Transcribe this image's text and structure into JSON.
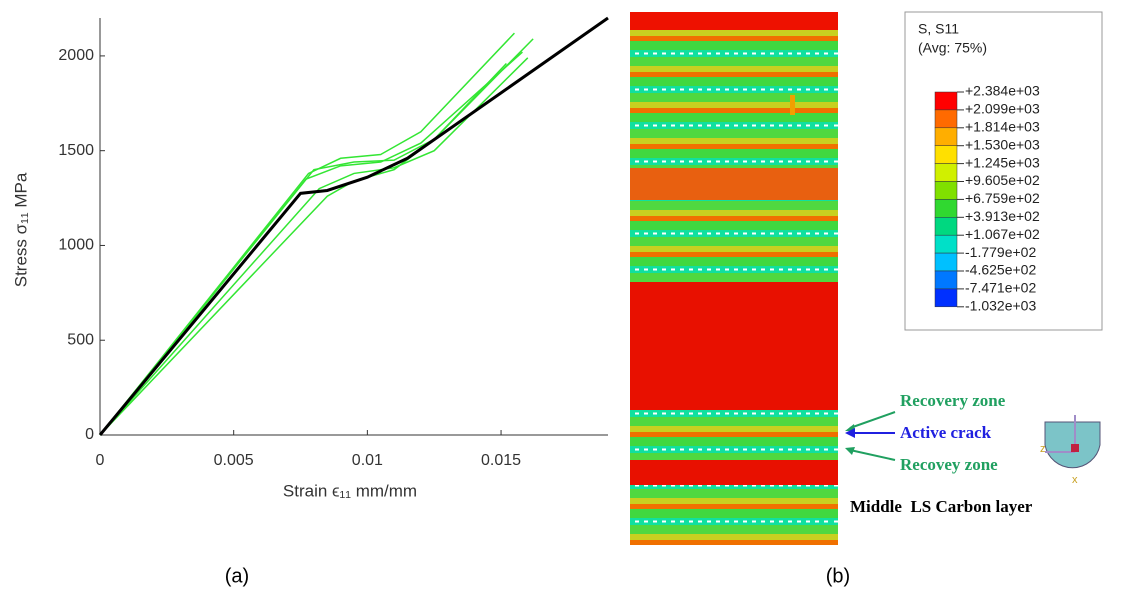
{
  "chart_data": {
    "type": "line",
    "ylabel": "Stress σ₁₁ MPa",
    "xlabel": "Strain ϵ₁₁ mm/mm",
    "xlim": [
      0,
      0.019
    ],
    "ylim": [
      0,
      2200
    ],
    "xticks": [
      0,
      0.005,
      0.01,
      0.015
    ],
    "yticks": [
      0,
      500,
      1000,
      1500,
      2000
    ],
    "series": [
      {
        "color": "#33e633",
        "x": [
          0,
          0.0078,
          0.009,
          0.0105,
          0.012,
          0.0155
        ],
        "values": [
          0,
          1380,
          1460,
          1480,
          1600,
          2120
        ]
      },
      {
        "color": "#33e633",
        "x": [
          0,
          0.008,
          0.0095,
          0.011,
          0.0125,
          0.0162
        ],
        "values": [
          0,
          1400,
          1440,
          1450,
          1560,
          2090
        ]
      },
      {
        "color": "#33e633",
        "x": [
          0,
          0.0077,
          0.009,
          0.0105,
          0.012,
          0.0158
        ],
        "values": [
          0,
          1350,
          1420,
          1440,
          1540,
          2020
        ]
      },
      {
        "color": "#33e633",
        "x": [
          0,
          0.0082,
          0.0095,
          0.011,
          0.0125,
          0.016
        ],
        "values": [
          0,
          1300,
          1380,
          1410,
          1500,
          1990
        ]
      },
      {
        "color": "#33e633",
        "x": [
          0,
          0.0085,
          0.0095,
          0.011,
          0.0125,
          0.0152
        ],
        "values": [
          0,
          1260,
          1340,
          1400,
          1560,
          1960
        ]
      },
      {
        "color": "#000000",
        "x": [
          0,
          0.0075,
          0.0085,
          0.01,
          0.0115,
          0.015,
          0.019
        ],
        "values": [
          0,
          1275,
          1290,
          1360,
          1460,
          1805,
          2200
        ]
      }
    ]
  },
  "contour": {
    "legend_title": [
      "S, S11",
      "(Avg: 75%)"
    ],
    "legend_labels": [
      "+2.384e+03",
      "+2.099e+03",
      "+1.814e+03",
      "+1.530e+03",
      "+1.245e+03",
      "+9.605e+02",
      "+6.759e+02",
      "+3.913e+02",
      "+1.067e+02",
      "-1.779e+02",
      "-4.625e+02",
      "-7.471e+02",
      "-1.032e+03"
    ],
    "legend_colors": [
      "#ff0000",
      "#ff6a00",
      "#ffae00",
      "#ffe000",
      "#d0f000",
      "#80e000",
      "#30d830",
      "#00d880",
      "#00e0c8",
      "#00c0ff",
      "#0078ff",
      "#0030ff"
    ],
    "annotations": [
      "Recovery zone",
      "Active crack",
      "Recovey zone"
    ],
    "layer_label": "Middle  LS Carbon layer",
    "triad": [
      "z",
      "x"
    ]
  },
  "captions": [
    "(a)",
    "(b)"
  ]
}
